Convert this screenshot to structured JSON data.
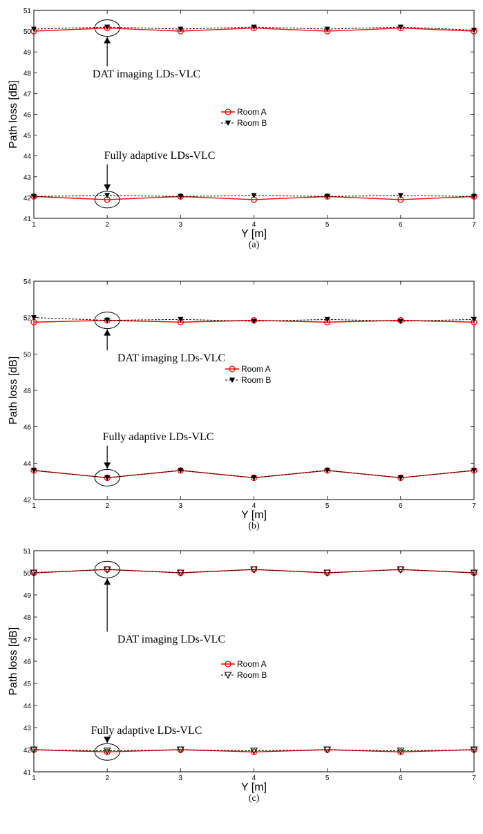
{
  "chart_data": [
    {
      "type": "line",
      "caption": "(a)",
      "xlabel": "Y [m]",
      "ylabel": "Path loss [dB]",
      "xlim": [
        1,
        7
      ],
      "ylim": [
        41,
        51
      ],
      "xticks": [
        1,
        2,
        3,
        4,
        5,
        6,
        7
      ],
      "yticks": [
        41,
        42,
        43,
        44,
        45,
        46,
        47,
        48,
        49,
        50,
        51
      ],
      "grid": false,
      "legend_position": "center",
      "series": [
        {
          "name": "Room A",
          "color": "#ff0000",
          "marker": "circle",
          "style": "solid",
          "x": [
            1,
            2,
            3,
            4,
            5,
            6,
            7
          ],
          "y": [
            50.0,
            50.15,
            50.0,
            50.15,
            50.0,
            50.15,
            50.0
          ]
        },
        {
          "name": "Room B",
          "color": "#000000",
          "marker": "triangle-down-filled",
          "style": "dashed",
          "x": [
            1,
            2,
            3,
            4,
            5,
            6,
            7
          ],
          "y": [
            50.1,
            50.2,
            50.1,
            50.2,
            50.1,
            50.2,
            50.05
          ]
        },
        {
          "name": "Room A",
          "color": "#ff0000",
          "marker": "circle",
          "style": "solid",
          "x": [
            1,
            2,
            3,
            4,
            5,
            6,
            7
          ],
          "y": [
            42.05,
            41.9,
            42.05,
            41.9,
            42.05,
            41.9,
            42.05
          ]
        },
        {
          "name": "Room B",
          "color": "#000000",
          "marker": "triangle-down-filled",
          "style": "dashed",
          "x": [
            1,
            2,
            3,
            4,
            5,
            6,
            7
          ],
          "y": [
            42.05,
            42.1,
            42.05,
            42.1,
            42.05,
            42.1,
            42.05
          ]
        }
      ],
      "annotations": [
        {
          "text": "DAT imaging LDs-VLC",
          "target_x": 2,
          "target_y": 50.15
        },
        {
          "text": "Fully adaptive LDs-VLC",
          "target_x": 2,
          "target_y": 41.9
        }
      ]
    },
    {
      "type": "line",
      "caption": "(b)",
      "xlabel": "Y [m]",
      "ylabel": "Path loss [dB]",
      "xlim": [
        1,
        7
      ],
      "ylim": [
        42,
        54
      ],
      "xticks": [
        1,
        2,
        3,
        4,
        5,
        6,
        7
      ],
      "yticks": [
        42,
        44,
        46,
        48,
        50,
        52,
        54
      ],
      "grid": false,
      "legend_position": "center",
      "series": [
        {
          "name": "Room A",
          "color": "#ff0000",
          "marker": "circle",
          "style": "solid",
          "x": [
            1,
            2,
            3,
            4,
            5,
            6,
            7
          ],
          "y": [
            51.75,
            51.85,
            51.75,
            51.85,
            51.75,
            51.85,
            51.75
          ]
        },
        {
          "name": "Room B",
          "color": "#000000",
          "marker": "triangle-down-filled",
          "style": "dashed",
          "x": [
            1,
            2,
            3,
            4,
            5,
            6,
            7
          ],
          "y": [
            52.0,
            51.85,
            51.9,
            51.8,
            51.9,
            51.8,
            51.9
          ]
        },
        {
          "name": "Room A",
          "color": "#ff0000",
          "marker": "circle",
          "style": "solid",
          "x": [
            1,
            2,
            3,
            4,
            5,
            6,
            7
          ],
          "y": [
            43.6,
            43.2,
            43.6,
            43.2,
            43.6,
            43.2,
            43.6
          ]
        },
        {
          "name": "Room B",
          "color": "#000000",
          "marker": "triangle-down-filled",
          "style": "dashed",
          "x": [
            1,
            2,
            3,
            4,
            5,
            6,
            7
          ],
          "y": [
            43.6,
            43.2,
            43.6,
            43.2,
            43.6,
            43.2,
            43.6
          ]
        }
      ],
      "annotations": [
        {
          "text": "DAT imaging LDs-VLC",
          "target_x": 2,
          "target_y": 51.85
        },
        {
          "text": "Fully adaptive LDs-VLC",
          "target_x": 2,
          "target_y": 43.2
        }
      ]
    },
    {
      "type": "line",
      "caption": "(c)",
      "xlabel": "Y [m]",
      "ylabel": "Path loss [dB]",
      "xlim": [
        1,
        7
      ],
      "ylim": [
        41,
        51
      ],
      "xticks": [
        1,
        2,
        3,
        4,
        5,
        6,
        7
      ],
      "yticks": [
        41,
        42,
        43,
        44,
        45,
        46,
        47,
        48,
        49,
        50,
        51
      ],
      "grid": false,
      "legend_position": "center",
      "series": [
        {
          "name": "Room A",
          "color": "#ff0000",
          "marker": "circle",
          "style": "solid",
          "x": [
            1,
            2,
            3,
            4,
            5,
            6,
            7
          ],
          "y": [
            50.0,
            50.15,
            50.0,
            50.15,
            50.0,
            50.15,
            50.0
          ]
        },
        {
          "name": "Room B",
          "color": "#000000",
          "marker": "triangle-down-open",
          "style": "dashed",
          "x": [
            1,
            2,
            3,
            4,
            5,
            6,
            7
          ],
          "y": [
            50.0,
            50.15,
            50.0,
            50.15,
            50.0,
            50.15,
            50.0
          ]
        },
        {
          "name": "Room A",
          "color": "#ff0000",
          "marker": "circle",
          "style": "solid",
          "x": [
            1,
            2,
            3,
            4,
            5,
            6,
            7
          ],
          "y": [
            42.0,
            41.9,
            42.0,
            41.9,
            42.0,
            41.9,
            42.0
          ]
        },
        {
          "name": "Room B",
          "color": "#000000",
          "marker": "triangle-down-open",
          "style": "dashed",
          "x": [
            1,
            2,
            3,
            4,
            5,
            6,
            7
          ],
          "y": [
            42.0,
            41.95,
            42.0,
            41.95,
            42.0,
            41.95,
            42.0
          ]
        }
      ],
      "annotations": [
        {
          "text": "DAT imaging LDs-VLC",
          "target_x": 2,
          "target_y": 50.15
        },
        {
          "text": "Fully adaptive LDs-VLC",
          "target_x": 2,
          "target_y": 41.9
        }
      ]
    }
  ]
}
